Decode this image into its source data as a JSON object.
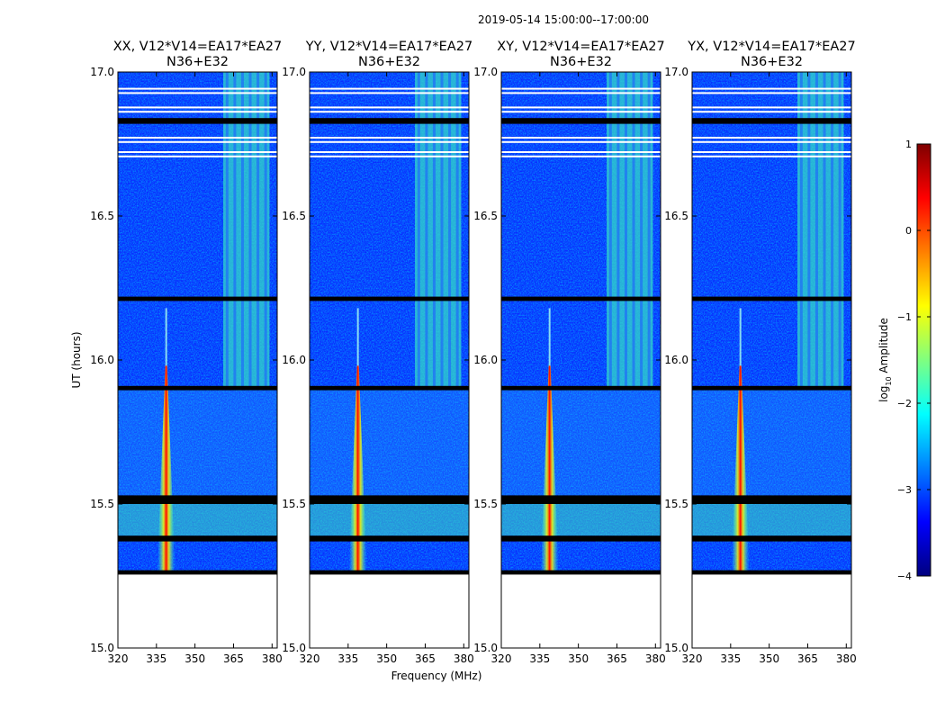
{
  "figure": {
    "suptitle": "2019-05-14  15:00:00--17:00:00",
    "xlabel": "Frequency (MHz)",
    "ylabel": "UT (hours)"
  },
  "chart_data": {
    "type": "heatmap",
    "xlim": [
      320,
      382
    ],
    "ylim": [
      15.0,
      17.0
    ],
    "xticks": [
      320,
      335,
      350,
      365,
      380
    ],
    "yticks": [
      "15.0",
      "15.5",
      "16.0",
      "16.5",
      "17.0"
    ],
    "panels": [
      {
        "title_line1": "XX, V12*V14=EA17*EA27",
        "title_line2": "N36+E32",
        "rfi_band": true
      },
      {
        "title_line1": "YY, V12*V14=EA17*EA27",
        "title_line2": "N36+E32",
        "rfi_band": true
      },
      {
        "title_line1": "XY, V12*V14=EA17*EA27",
        "title_line2": "N36+E32",
        "rfi_band": true
      },
      {
        "title_line1": "YX, V12*V14=EA17*EA27",
        "title_line2": "N36+E32",
        "rfi_band": true
      }
    ],
    "features": {
      "strong_line_mhz": 338.8,
      "rfi_band_mhz": [
        361,
        379
      ],
      "data_start_ut": 15.26,
      "flagged_ut_ranges": [
        [
          15.255,
          15.27
        ],
        [
          15.37,
          15.39
        ],
        [
          15.5,
          15.53
        ],
        [
          15.895,
          15.91
        ],
        [
          16.205,
          16.22
        ],
        [
          16.82,
          16.84
        ]
      ],
      "gap_ut": [
        16.71,
        16.725,
        16.76,
        16.775,
        16.865,
        16.88,
        16.93,
        16.945
      ]
    },
    "colorbar": {
      "label": "log",
      "label_sub": "10",
      "label_rest": " Amplitude",
      "range": [
        -4,
        1
      ],
      "ticks": [
        "1",
        "0",
        "−1",
        "−2",
        "−3",
        "−4"
      ],
      "colormap": "jet"
    }
  }
}
